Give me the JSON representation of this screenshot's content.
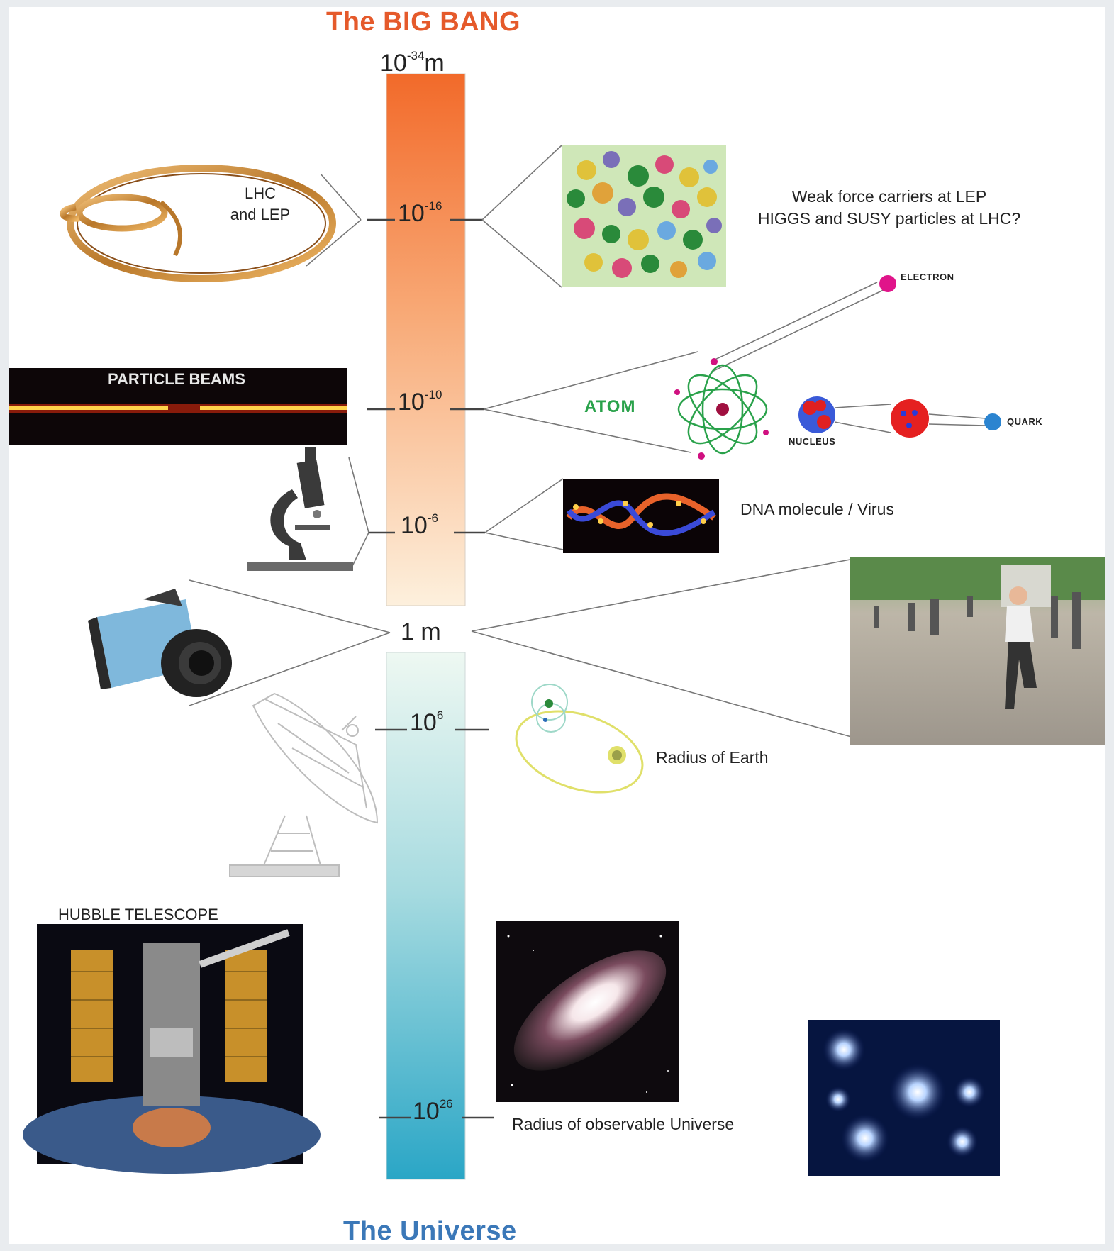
{
  "title_top": "The BIG BANG",
  "title_bottom": "The Universe",
  "scale": {
    "top": {
      "base": "10",
      "exp": "-34",
      "unit": "m"
    },
    "m16": {
      "base": "10",
      "exp": "-16"
    },
    "m10": {
      "base": "10",
      "exp": "-10"
    },
    "m6": {
      "base": "10",
      "exp": "-6"
    },
    "one": "1 m",
    "p6": {
      "base": "10",
      "exp": "6"
    },
    "p26": {
      "base": "10",
      "exp": "26"
    }
  },
  "labels": {
    "lhc_line1": "LHC",
    "lhc_line2": "and LEP",
    "weak_line1": "Weak force carriers at LEP",
    "weak_line2": "HIGGS and SUSY particles at LHC?",
    "particle_beams": "PARTICLE BEAMS",
    "atom": "ATOM",
    "electron": "ELECTRON",
    "nucleus": "NUCLEUS",
    "quark": "QUARK",
    "dna": "DNA molecule / Virus",
    "earth": "Radius of Earth",
    "hubble": "HUBBLE TELESCOPE",
    "universe": "Radius of observable Universe"
  },
  "colors": {
    "bar_top": "#f26a2a",
    "bar_mid": "#fde9cf",
    "bar_low_top": "#eef8f2",
    "bar_bottom": "#2fa9c7",
    "title_top": "#e55a2b",
    "title_bottom": "#3b78b8",
    "atom_green": "#2aa24b"
  },
  "icons": [
    "ring-accelerator-icon",
    "microscope-icon",
    "camera-icon",
    "radio-dish-icon",
    "particle-cluster-image",
    "dna-image",
    "runner-photo",
    "galaxy-image",
    "star-cluster-image",
    "hubble-image",
    "atom-diagram",
    "earth-orbit-diagram"
  ]
}
